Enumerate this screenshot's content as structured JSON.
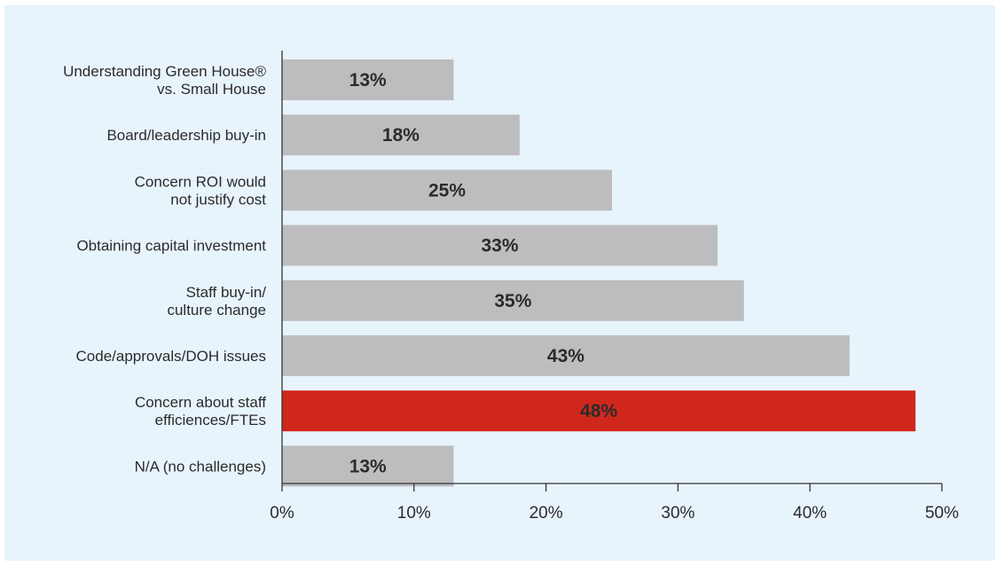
{
  "chart_data": {
    "type": "bar",
    "orientation": "horizontal",
    "categories": [
      [
        "Understanding Green House®",
        "vs. Small House"
      ],
      [
        "Board/leadership buy-in"
      ],
      [
        "Concern ROI would",
        "not justify cost"
      ],
      [
        "Obtaining capital investment"
      ],
      [
        "Staff buy-in/",
        "culture change"
      ],
      [
        "Code/approvals/DOH issues"
      ],
      [
        "Concern about staff",
        "efficiences/FTEs"
      ],
      [
        "N/A (no challenges)"
      ]
    ],
    "values": [
      13,
      18,
      25,
      33,
      35,
      43,
      48,
      13
    ],
    "value_labels": [
      "13%",
      "18%",
      "25%",
      "33%",
      "35%",
      "43%",
      "48%",
      "13%"
    ],
    "highlight_index": 6,
    "xlim": [
      0,
      50
    ],
    "xticks": [
      0,
      10,
      20,
      30,
      40,
      50
    ],
    "xtick_labels": [
      "0%",
      "10%",
      "20%",
      "30%",
      "40%",
      "50%"
    ],
    "colors": {
      "bar": "#bdbdbf",
      "highlight": "#d0271d",
      "background": "#e8f4fc",
      "axis": "#333333",
      "highlight_text": "#ffffff",
      "text": "#2b2b2b"
    },
    "grid": false,
    "legend": "none"
  }
}
